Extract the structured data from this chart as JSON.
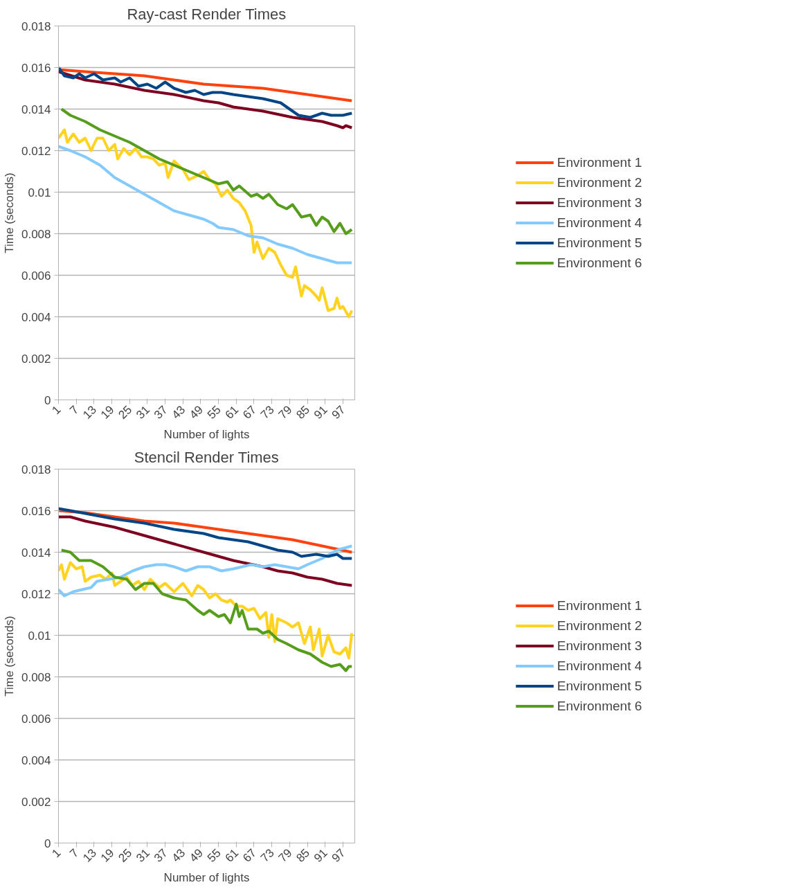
{
  "chart_data": [
    {
      "type": "line",
      "title": "Ray-cast Render Times",
      "xlabel": "Number of lights",
      "ylabel": "Time (seconds)",
      "xlim": [
        1,
        101
      ],
      "xticks": [
        1,
        7,
        13,
        19,
        25,
        31,
        37,
        43,
        49,
        55,
        61,
        67,
        73,
        79,
        85,
        91,
        97
      ],
      "ylim": [
        0,
        0.018
      ],
      "yticks": [
        0,
        0.002,
        0.004,
        0.006,
        0.008,
        0.01,
        0.012,
        0.014,
        0.016,
        0.018
      ],
      "grid": "y",
      "legend": "right",
      "series": [
        {
          "name": "Environment 1",
          "color": "#ff420e",
          "x": [
            1,
            10,
            20,
            30,
            40,
            50,
            60,
            70,
            80,
            90,
            100
          ],
          "values": [
            0.0159,
            0.0158,
            0.0157,
            0.0156,
            0.0154,
            0.0152,
            0.0151,
            0.015,
            0.0148,
            0.0146,
            0.0144
          ]
        },
        {
          "name": "Environment 2",
          "color": "#ffd320",
          "x": [
            1,
            3,
            4,
            6,
            8,
            10,
            12,
            14,
            16,
            18,
            20,
            21,
            23,
            25,
            27,
            29,
            31,
            33,
            35,
            37,
            38,
            40,
            43,
            45,
            48,
            50,
            52,
            54,
            56,
            58,
            60,
            62,
            64,
            66,
            67,
            68,
            70,
            72,
            74,
            76,
            78,
            80,
            81,
            83,
            84,
            86,
            88,
            89,
            90,
            92,
            94,
            95,
            96,
            97,
            99,
            100
          ],
          "values": [
            0.0126,
            0.013,
            0.0124,
            0.0128,
            0.0124,
            0.0126,
            0.012,
            0.0126,
            0.0126,
            0.012,
            0.0123,
            0.0116,
            0.0121,
            0.0118,
            0.0121,
            0.0117,
            0.0117,
            0.0116,
            0.0113,
            0.0114,
            0.0107,
            0.0115,
            0.0111,
            0.0106,
            0.0108,
            0.011,
            0.0106,
            0.0104,
            0.0098,
            0.0101,
            0.0097,
            0.0095,
            0.0091,
            0.0084,
            0.0071,
            0.0076,
            0.0068,
            0.0073,
            0.0071,
            0.0065,
            0.006,
            0.0059,
            0.0064,
            0.005,
            0.0055,
            0.0053,
            0.005,
            0.0048,
            0.0054,
            0.0043,
            0.0044,
            0.0049,
            0.0044,
            0.0045,
            0.004,
            0.0043
          ]
        },
        {
          "name": "Environment 3",
          "color": "#7e0021",
          "x": [
            1,
            10,
            20,
            30,
            40,
            50,
            55,
            60,
            70,
            80,
            90,
            95,
            97,
            98,
            100
          ],
          "values": [
            0.0158,
            0.0154,
            0.0152,
            0.0149,
            0.0147,
            0.0144,
            0.0143,
            0.0141,
            0.0139,
            0.0136,
            0.0134,
            0.0132,
            0.0131,
            0.0132,
            0.0131
          ]
        },
        {
          "name": "Environment 4",
          "color": "#83caff",
          "x": [
            1,
            5,
            10,
            15,
            20,
            25,
            30,
            35,
            40,
            45,
            50,
            53,
            55,
            60,
            65,
            70,
            75,
            80,
            85,
            90,
            95,
            100
          ],
          "values": [
            0.0122,
            0.012,
            0.0117,
            0.0113,
            0.0107,
            0.0103,
            0.0099,
            0.0095,
            0.0091,
            0.0089,
            0.0087,
            0.0085,
            0.0083,
            0.0082,
            0.0079,
            0.0078,
            0.0075,
            0.0073,
            0.007,
            0.0068,
            0.0066,
            0.0066
          ]
        },
        {
          "name": "Environment 5",
          "color": "#004586",
          "x": [
            1,
            3,
            6,
            8,
            10,
            13,
            16,
            20,
            22,
            25,
            28,
            31,
            34,
            37,
            40,
            44,
            47,
            50,
            53,
            56,
            60,
            65,
            70,
            76,
            82,
            86,
            90,
            93,
            97,
            100
          ],
          "values": [
            0.016,
            0.0156,
            0.0155,
            0.0157,
            0.0155,
            0.0157,
            0.0154,
            0.0155,
            0.0153,
            0.0155,
            0.0151,
            0.0152,
            0.015,
            0.0153,
            0.015,
            0.0148,
            0.0149,
            0.0147,
            0.0148,
            0.0148,
            0.0147,
            0.0146,
            0.0145,
            0.0143,
            0.0137,
            0.0136,
            0.0138,
            0.0137,
            0.0137,
            0.0138
          ]
        },
        {
          "name": "Environment 6",
          "color": "#579d1c",
          "x": [
            2,
            5,
            10,
            15,
            20,
            25,
            30,
            35,
            40,
            45,
            50,
            55,
            58,
            60,
            62,
            66,
            68,
            70,
            72,
            75,
            78,
            80,
            83,
            86,
            88,
            90,
            92,
            94,
            96,
            98,
            100
          ],
          "values": [
            0.014,
            0.0137,
            0.0134,
            0.013,
            0.0127,
            0.0124,
            0.012,
            0.0116,
            0.0113,
            0.011,
            0.0107,
            0.0104,
            0.0105,
            0.0101,
            0.0103,
            0.0098,
            0.0099,
            0.0097,
            0.0099,
            0.0094,
            0.0092,
            0.0094,
            0.0088,
            0.0089,
            0.0084,
            0.0088,
            0.0086,
            0.0081,
            0.0085,
            0.008,
            0.0082
          ]
        }
      ]
    },
    {
      "type": "line",
      "title": "Stencil Render Times",
      "xlabel": "Number of lights",
      "ylabel": "Time (seconds)",
      "xlim": [
        1,
        101
      ],
      "xticks": [
        1,
        7,
        13,
        19,
        25,
        31,
        37,
        43,
        49,
        55,
        61,
        67,
        73,
        79,
        85,
        91,
        97
      ],
      "ylim": [
        0,
        0.018
      ],
      "yticks": [
        0,
        0.002,
        0.004,
        0.006,
        0.008,
        0.01,
        0.012,
        0.014,
        0.016,
        0.018
      ],
      "grid": "y",
      "legend": "right",
      "series": [
        {
          "name": "Environment 1",
          "color": "#ff420e",
          "x": [
            1,
            10,
            20,
            30,
            40,
            50,
            60,
            70,
            80,
            90,
            100
          ],
          "values": [
            0.016,
            0.0159,
            0.0157,
            0.0155,
            0.0154,
            0.0152,
            0.015,
            0.0148,
            0.0146,
            0.0143,
            0.014
          ]
        },
        {
          "name": "Environment 2",
          "color": "#ffd320",
          "x": [
            1,
            2,
            3,
            5,
            7,
            9,
            10,
            12,
            15,
            17,
            19,
            20,
            22,
            24,
            26,
            28,
            30,
            32,
            35,
            37,
            40,
            43,
            46,
            48,
            50,
            52,
            54,
            56,
            58,
            59,
            61,
            63,
            65,
            67,
            69,
            71,
            72,
            73,
            74,
            75,
            78,
            80,
            82,
            84,
            86,
            87,
            89,
            90,
            92,
            94,
            96,
            98,
            99,
            100
          ],
          "values": [
            0.0131,
            0.0134,
            0.0127,
            0.0135,
            0.0132,
            0.0133,
            0.0126,
            0.0128,
            0.0129,
            0.0127,
            0.013,
            0.0124,
            0.0126,
            0.0128,
            0.0124,
            0.0126,
            0.0122,
            0.0127,
            0.0123,
            0.0125,
            0.0121,
            0.0125,
            0.0119,
            0.0124,
            0.0122,
            0.0118,
            0.012,
            0.0117,
            0.0116,
            0.0117,
            0.0114,
            0.0114,
            0.0112,
            0.0113,
            0.0108,
            0.0111,
            0.0099,
            0.011,
            0.0097,
            0.0108,
            0.0106,
            0.0104,
            0.0106,
            0.0096,
            0.0104,
            0.0093,
            0.0103,
            0.009,
            0.01,
            0.0092,
            0.0091,
            0.0094,
            0.0089,
            0.0101
          ]
        },
        {
          "name": "Environment 3",
          "color": "#7e0021",
          "x": [
            1,
            5,
            10,
            20,
            30,
            40,
            50,
            55,
            60,
            70,
            75,
            80,
            85,
            90,
            95,
            100
          ],
          "values": [
            0.0157,
            0.0157,
            0.0155,
            0.0152,
            0.0148,
            0.0144,
            0.014,
            0.0138,
            0.0136,
            0.0133,
            0.0131,
            0.013,
            0.0128,
            0.0127,
            0.0125,
            0.0124
          ]
        },
        {
          "name": "Environment 4",
          "color": "#83caff",
          "x": [
            1,
            3,
            6,
            9,
            12,
            14,
            18,
            22,
            26,
            30,
            34,
            37,
            40,
            44,
            48,
            52,
            56,
            60,
            63,
            66,
            70,
            74,
            78,
            82,
            85,
            90,
            95,
            100
          ],
          "values": [
            0.0122,
            0.0119,
            0.0121,
            0.0122,
            0.0123,
            0.0126,
            0.0127,
            0.0128,
            0.0131,
            0.0133,
            0.0134,
            0.0134,
            0.0133,
            0.0131,
            0.0133,
            0.0133,
            0.0131,
            0.0132,
            0.0133,
            0.0134,
            0.0133,
            0.0134,
            0.0133,
            0.0132,
            0.0134,
            0.0137,
            0.0141,
            0.0143
          ]
        },
        {
          "name": "Environment 5",
          "color": "#004586",
          "x": [
            1,
            5,
            20,
            30,
            40,
            50,
            55,
            60,
            65,
            70,
            75,
            80,
            83,
            88,
            92,
            95,
            97,
            100
          ],
          "values": [
            0.0161,
            0.016,
            0.0156,
            0.0154,
            0.0151,
            0.0149,
            0.0147,
            0.0146,
            0.0145,
            0.0143,
            0.0141,
            0.014,
            0.0138,
            0.0139,
            0.0138,
            0.0139,
            0.0137,
            0.0137
          ]
        },
        {
          "name": "Environment 6",
          "color": "#579d1c",
          "x": [
            2,
            5,
            8,
            12,
            16,
            20,
            24,
            27,
            30,
            33,
            36,
            40,
            44,
            48,
            50,
            52,
            55,
            57,
            59,
            61,
            62,
            63,
            65,
            68,
            70,
            72,
            75,
            78,
            82,
            86,
            90,
            93,
            96,
            98,
            99,
            100
          ],
          "values": [
            0.0141,
            0.014,
            0.0136,
            0.0136,
            0.0133,
            0.0128,
            0.0127,
            0.0122,
            0.0125,
            0.0125,
            0.012,
            0.0118,
            0.0117,
            0.0112,
            0.011,
            0.0112,
            0.0109,
            0.011,
            0.0106,
            0.0115,
            0.0109,
            0.0112,
            0.0103,
            0.0103,
            0.0101,
            0.0102,
            0.0098,
            0.0096,
            0.0093,
            0.0091,
            0.0087,
            0.0085,
            0.0086,
            0.0083,
            0.0085,
            0.0085
          ]
        }
      ]
    }
  ]
}
